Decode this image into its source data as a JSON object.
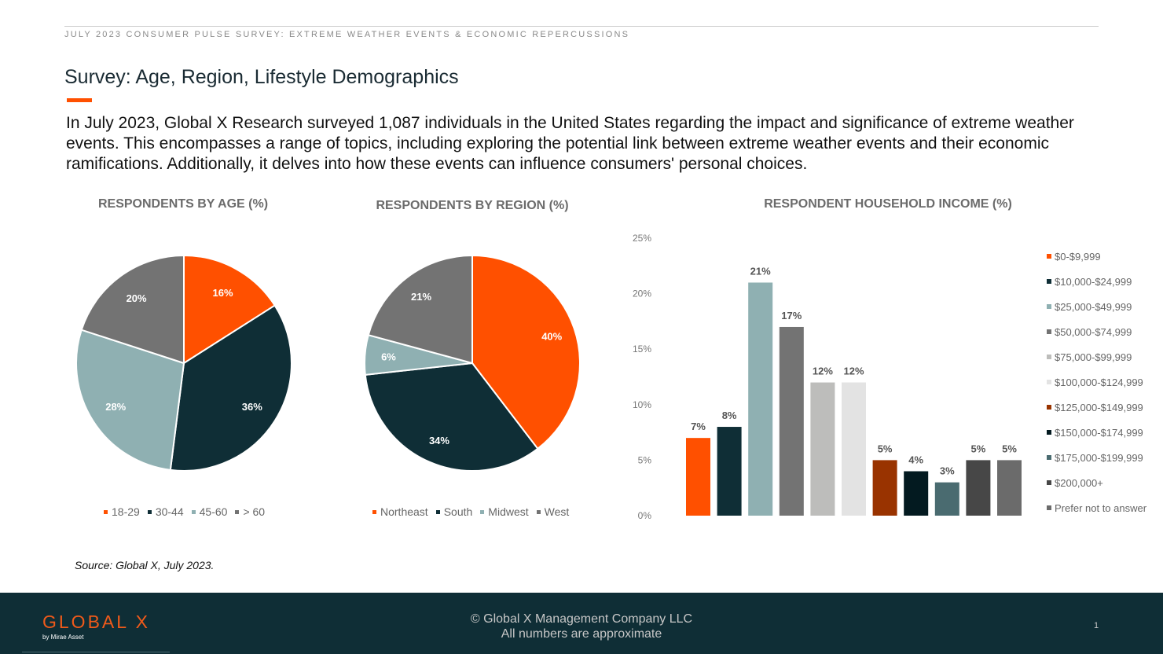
{
  "header": "JULY 2023 CONSUMER PULSE SURVEY: EXTREME WEATHER EVENTS & ECONOMIC REPERCUSSIONS",
  "title": "Survey: Age, Region, Lifestyle Demographics",
  "intro": "In July 2023, Global X Research surveyed 1,087 individuals in the United States regarding the impact and significance of extreme weather events. This encompasses a range of topics, including exploring the potential link between extreme weather events and their economic ramifications. Additionally, it delves into how these events can influence consumers' personal choices.",
  "source": "Source: Global X, July 2023.",
  "footer": {
    "logo": "GLOBAL X",
    "logo_sub": "by Mirae Asset",
    "copyright": "© Global X Management Company LLC",
    "note": "All numbers are approximate",
    "page": "1"
  },
  "colors": {
    "accent": "#ff5000",
    "navy": "#0f2e36",
    "gray": "#737373"
  },
  "chart_data": [
    {
      "type": "pie",
      "title": "RESPONDENTS BY AGE (%)",
      "categories": [
        "18-29",
        "30-44",
        "45-60",
        "> 60"
      ],
      "values": [
        16,
        36,
        28,
        20
      ],
      "labels": [
        "16%",
        "36%",
        "28%",
        "20%"
      ],
      "colors": [
        "#ff5000",
        "#0f2e36",
        "#8fb0b2",
        "#737373"
      ],
      "legend": "bottom"
    },
    {
      "type": "pie",
      "title": "RESPONDENTS BY REGION (%)",
      "categories": [
        "Northeast",
        "South",
        "Midwest",
        "West"
      ],
      "values": [
        40,
        34,
        6,
        21
      ],
      "labels": [
        "40%",
        "34%",
        "6%",
        "21%"
      ],
      "colors": [
        "#ff5000",
        "#0f2e36",
        "#8fb0b2",
        "#737373"
      ],
      "legend": "bottom"
    },
    {
      "type": "bar",
      "title": "RESPONDENT HOUSEHOLD INCOME (%)",
      "categories": [
        "$0-$9,999",
        "$10,000-$24,999",
        "$25,000-$49,999",
        "$50,000-$74,999",
        "$75,000-$99,999",
        "$100,000-$124,999",
        "$125,000-$149,999",
        "$150,000-$174,999",
        "$175,000-$199,999",
        "$200,000+",
        "Prefer not to answer"
      ],
      "values": [
        7,
        8,
        21,
        17,
        12,
        12,
        5,
        4,
        3,
        5,
        5
      ],
      "labels": [
        "7%",
        "8%",
        "21%",
        "17%",
        "12%",
        "12%",
        "5%",
        "4%",
        "3%",
        "5%",
        "5%"
      ],
      "colors": [
        "#ff5000",
        "#0f2e36",
        "#8fb0b2",
        "#737373",
        "#bdbdbb",
        "#e3e3e3",
        "#993300",
        "#031a20",
        "#4a6b70",
        "#474747",
        "#6b6b6b"
      ],
      "yticks": [
        "0%",
        "5%",
        "10%",
        "15%",
        "20%",
        "25%"
      ],
      "ylim": [
        0,
        25
      ],
      "grid": false,
      "legend": "right"
    }
  ]
}
